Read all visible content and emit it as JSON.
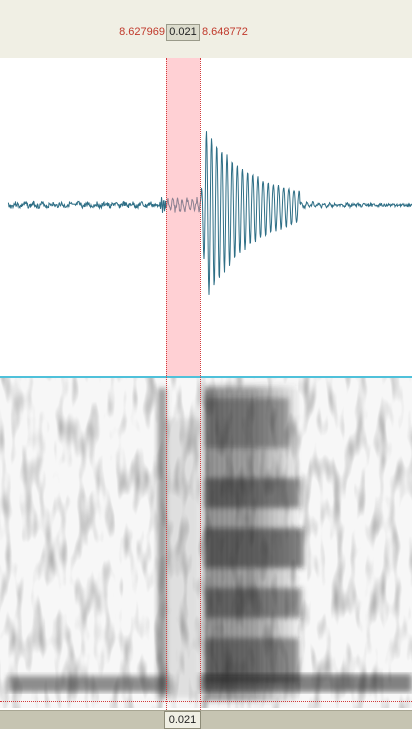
{
  "selection": {
    "start": "8.627969",
    "end": "8.648772",
    "duration": "0.021"
  },
  "colors": {
    "waveform": "#2f6f86",
    "selection": "#ffb3ba",
    "cursor": "#d23a3a",
    "divider": "#4fc1da",
    "ruler": "#f0efe4"
  },
  "icons": []
}
